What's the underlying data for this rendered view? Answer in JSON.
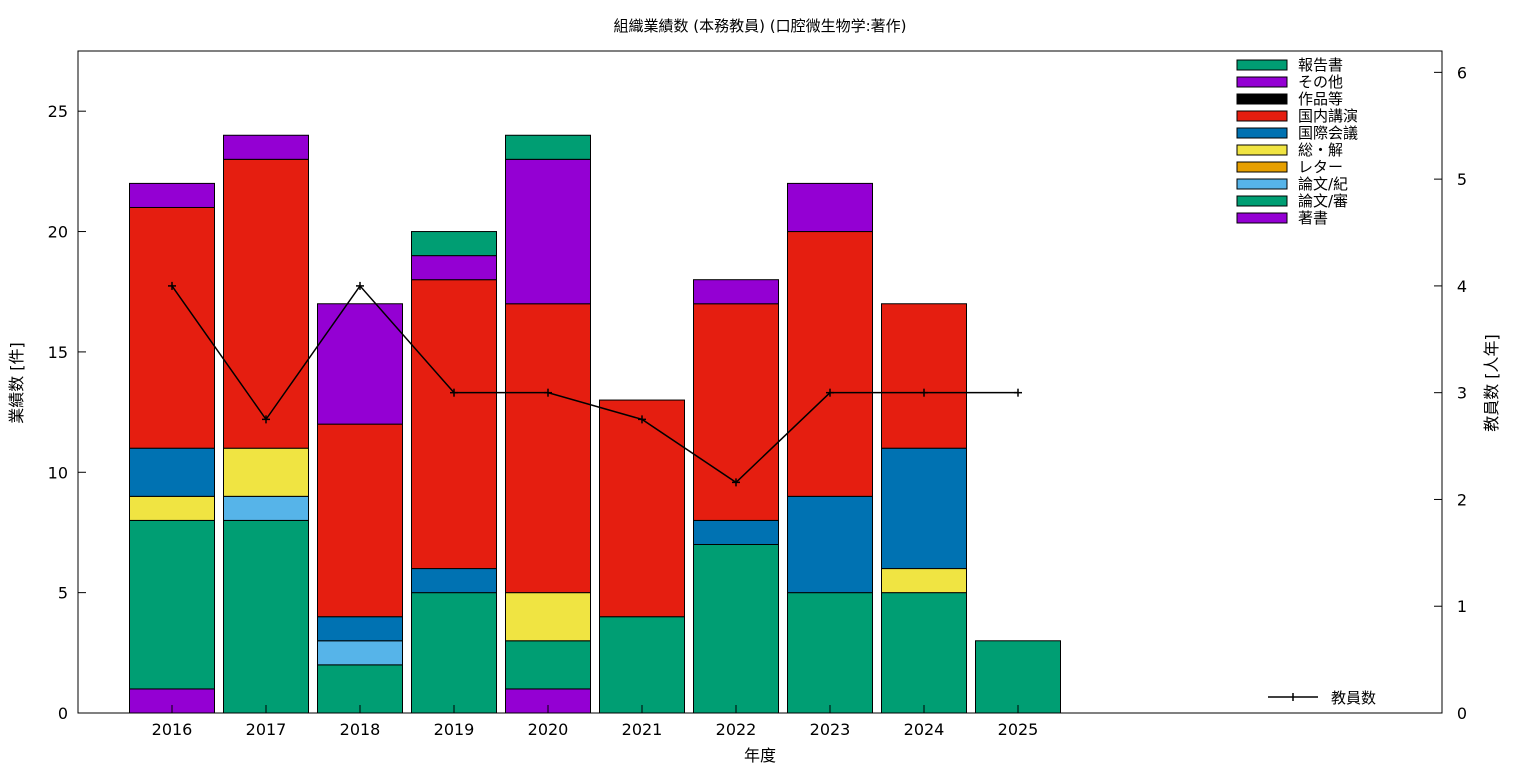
{
  "chart_data": {
    "type": "bar",
    "stacked": true,
    "title": "組織業績数 (本務教員) (口腔微生物学:著作)",
    "xlabel": "年度",
    "ylabel": "業績数 [件]",
    "y2label": "教員数 [人年]",
    "categories": [
      "2016",
      "2017",
      "2018",
      "2019",
      "2020",
      "2021",
      "2022",
      "2023",
      "2024",
      "2025"
    ],
    "ylim": [
      0,
      27.5
    ],
    "yticks": [
      0,
      5,
      10,
      15,
      20,
      25
    ],
    "y2lim": [
      0,
      6.2
    ],
    "y2ticks": [
      0,
      1,
      2,
      3,
      4,
      5,
      6
    ],
    "grid": false,
    "legend_position": "top-right",
    "series": [
      {
        "name": "著書",
        "color": "#9400d3",
        "values": [
          1,
          0,
          0,
          0,
          1,
          0,
          0,
          0,
          0,
          0
        ]
      },
      {
        "name": "論文/審",
        "color": "#009e73",
        "values": [
          7,
          8,
          2,
          5,
          2,
          4,
          7,
          5,
          5,
          3
        ]
      },
      {
        "name": "論文/紀",
        "color": "#56b4e9",
        "values": [
          0,
          1,
          1,
          0,
          0,
          0,
          0,
          0,
          0,
          0
        ]
      },
      {
        "name": "レター",
        "color": "#e69f00",
        "values": [
          0,
          0,
          0,
          0,
          0,
          0,
          0,
          0,
          0,
          0
        ]
      },
      {
        "name": "総・解",
        "color": "#f0e442",
        "values": [
          1,
          2,
          0,
          0,
          2,
          0,
          0,
          0,
          1,
          0
        ]
      },
      {
        "name": "国際会議",
        "color": "#0072b2",
        "values": [
          2,
          0,
          1,
          1,
          0,
          0,
          1,
          4,
          5,
          0
        ]
      },
      {
        "name": "国内講演",
        "color": "#e51e10",
        "values": [
          10,
          12,
          8,
          12,
          12,
          9,
          9,
          11,
          6,
          0
        ]
      },
      {
        "name": "作品等",
        "color": "#000000",
        "values": [
          0,
          0,
          0,
          0,
          0,
          0,
          0,
          0,
          0,
          0
        ]
      },
      {
        "name": "その他",
        "color": "#9400d3",
        "values": [
          1,
          1,
          5,
          1,
          6,
          0,
          1,
          2,
          0,
          0
        ]
      },
      {
        "name": "報告書",
        "color": "#009e73",
        "values": [
          0,
          0,
          0,
          1,
          1,
          0,
          0,
          0,
          0,
          0
        ]
      }
    ],
    "line_series": {
      "name": "教員数",
      "axis": "y2",
      "color": "#000000",
      "values": [
        4,
        2.75,
        4,
        3,
        3,
        2.75,
        2.16,
        3,
        3,
        3
      ]
    }
  }
}
